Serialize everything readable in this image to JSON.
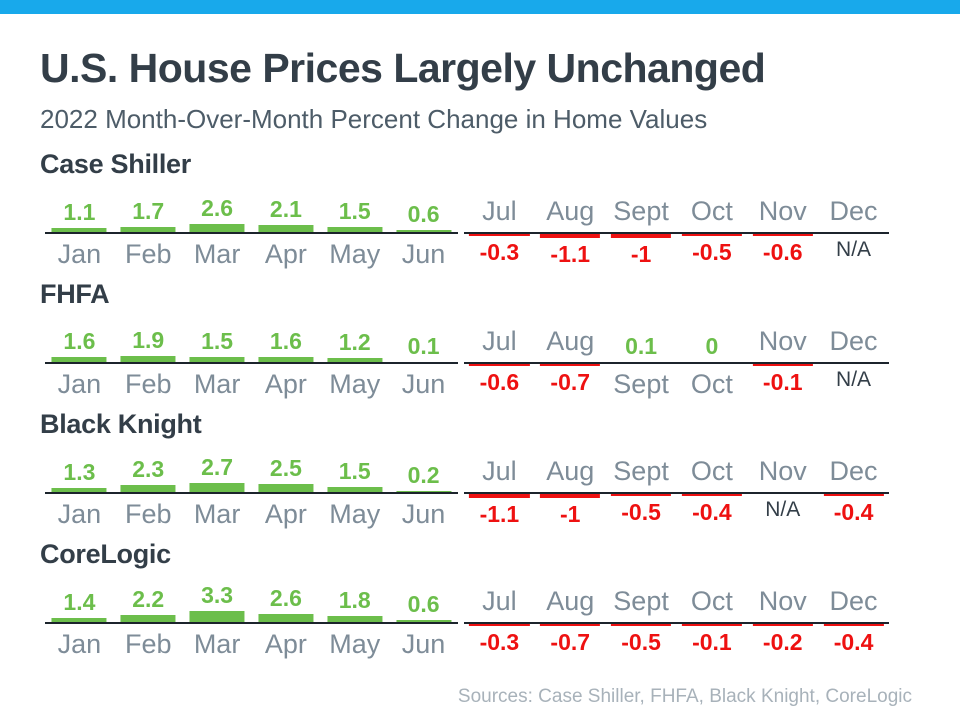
{
  "page": {
    "title": "U.S. House Prices Largely Unchanged",
    "subtitle": "2022 Month-Over-Month Percent Change in Home Values",
    "sources": "Sources: Case Shiller, FHFA, Black Knight, CoreLogic"
  },
  "colors": {
    "top_bar": "#18a9eb",
    "dark_text": "#333e48",
    "subtitle": "#4d5c68",
    "positive": "#6cbe4b",
    "negative": "#ee1111",
    "month_label": "#7e8c98",
    "axis_line": "#1c242c",
    "source_text": "#a8b2ba",
    "background": "#ffffff"
  },
  "chart_data": [
    {
      "type": "bar",
      "title": "Case Shiller",
      "categories": [
        "Jan",
        "Feb",
        "Mar",
        "Apr",
        "May",
        "Jun",
        "Jul",
        "Aug",
        "Sept",
        "Oct",
        "Nov",
        "Dec"
      ],
      "values": [
        1.1,
        1.7,
        2.6,
        2.1,
        1.5,
        0.6,
        -0.3,
        -1.1,
        -1,
        -0.5,
        -0.6,
        null
      ],
      "value_labels": [
        "1.1",
        "1.7",
        "2.6",
        "2.1",
        "1.5",
        "0.6",
        "-0.3",
        "-1.1",
        "-1",
        "-0.5",
        "-0.6",
        "N/A"
      ],
      "ylabel": "Percent change",
      "grid": false,
      "legend": false,
      "layout": "Jan-Jun on left axis segment, Jul-Dec on right; positive bars green above baseline with value above and month below; negative bars red below baseline with month above and value below; N/A shown as text with no bar"
    },
    {
      "type": "bar",
      "title": "FHFA",
      "categories": [
        "Jan",
        "Feb",
        "Mar",
        "Apr",
        "May",
        "Jun",
        "Jul",
        "Aug",
        "Sept",
        "Oct",
        "Nov",
        "Dec"
      ],
      "values": [
        1.6,
        1.9,
        1.5,
        1.6,
        1.2,
        0.1,
        -0.6,
        -0.7,
        0.1,
        0,
        -0.1,
        null
      ],
      "value_labels": [
        "1.6",
        "1.9",
        "1.5",
        "1.6",
        "1.2",
        "0.1",
        "-0.6",
        "-0.7",
        "0.1",
        "0",
        "-0.1",
        "N/A"
      ],
      "ylabel": "Percent change",
      "grid": false,
      "legend": false,
      "layout": "Sept (0.1) and Oct (0) are positive/zero: green value above baseline, month label below"
    },
    {
      "type": "bar",
      "title": "Black Knight",
      "categories": [
        "Jan",
        "Feb",
        "Mar",
        "Apr",
        "May",
        "Jun",
        "Jul",
        "Aug",
        "Sept",
        "Oct",
        "Nov",
        "Dec"
      ],
      "values": [
        1.3,
        2.3,
        2.7,
        2.5,
        1.5,
        0.2,
        -1.1,
        -1,
        -0.5,
        -0.4,
        null,
        -0.4
      ],
      "value_labels": [
        "1.3",
        "2.3",
        "2.7",
        "2.5",
        "1.5",
        "0.2",
        "-1.1",
        "-1",
        "-0.5",
        "-0.4",
        "N/A",
        "-0.4"
      ],
      "ylabel": "Percent change",
      "grid": false,
      "legend": false,
      "layout": "Nov is N/A"
    },
    {
      "type": "bar",
      "title": "CoreLogic",
      "categories": [
        "Jan",
        "Feb",
        "Mar",
        "Apr",
        "May",
        "Jun",
        "Jul",
        "Aug",
        "Sept",
        "Oct",
        "Nov",
        "Dec"
      ],
      "values": [
        1.4,
        2.2,
        3.3,
        2.6,
        1.8,
        0.6,
        -0.3,
        -0.7,
        -0.5,
        -0.1,
        -0.2,
        -0.4
      ],
      "value_labels": [
        "1.4",
        "2.2",
        "3.3",
        "2.6",
        "1.8",
        "0.6",
        "-0.3",
        "-0.7",
        "-0.5",
        "-0.1",
        "-0.2",
        "-0.4"
      ],
      "ylabel": "Percent change",
      "grid": false,
      "legend": false,
      "layout": "no N/A months"
    }
  ]
}
